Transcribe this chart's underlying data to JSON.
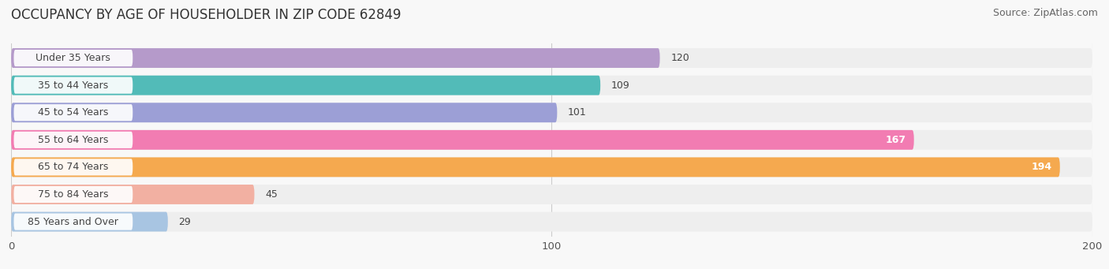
{
  "title": "OCCUPANCY BY AGE OF HOUSEHOLDER IN ZIP CODE 62849",
  "source": "Source: ZipAtlas.com",
  "categories": [
    "Under 35 Years",
    "35 to 44 Years",
    "45 to 54 Years",
    "55 to 64 Years",
    "65 to 74 Years",
    "75 to 84 Years",
    "85 Years and Over"
  ],
  "values": [
    120,
    109,
    101,
    167,
    194,
    45,
    29
  ],
  "bar_colors": [
    "#b59aca",
    "#52bbb8",
    "#9c9fd6",
    "#f27cb2",
    "#f5a94f",
    "#f2b0a2",
    "#a8c5e2"
  ],
  "bar_bg_color": "#eeeeee",
  "label_bg_color": "#ffffff",
  "xlim": [
    0,
    200
  ],
  "xticks": [
    0,
    100,
    200
  ],
  "title_fontsize": 12,
  "source_fontsize": 9,
  "label_fontsize": 9,
  "value_fontsize": 9,
  "bar_height": 0.72,
  "fig_width": 14.06,
  "fig_height": 3.41,
  "background_color": "#f8f8f8",
  "grid_color": "#cccccc",
  "label_text_color": "#444444",
  "value_color_inside": "#ffffff",
  "value_color_outside": "#444444",
  "inside_threshold": 130
}
